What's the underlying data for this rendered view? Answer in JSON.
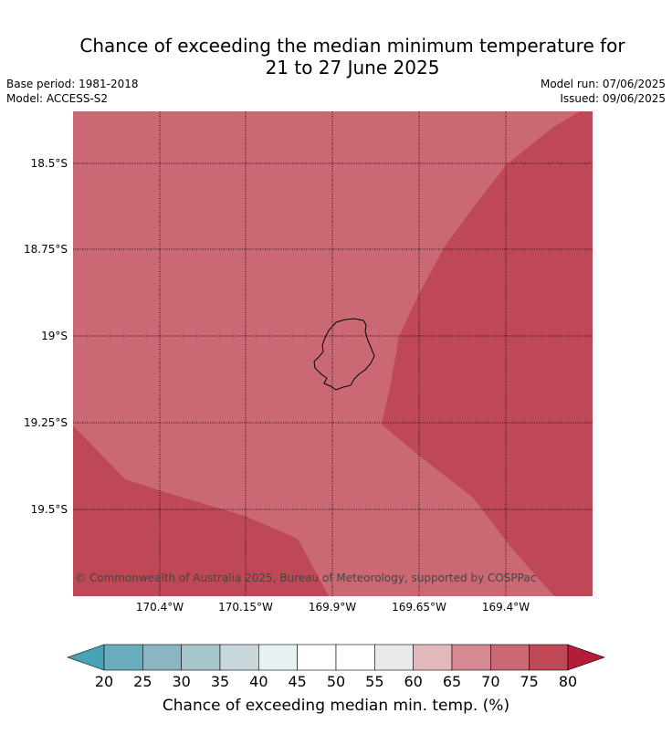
{
  "title_line1": "Chance of exceeding the median minimum temperature for",
  "title_line2": "21 to 27 June 2025",
  "base_period": "Base period: 1981-2018",
  "model": "Model: ACCESS-S2",
  "model_run": "Model run: 07/06/2025",
  "issued": "Issued: 09/06/2025",
  "map": {
    "latitude_labels": [
      "18.5°S",
      "18.75°S",
      "19°S",
      "19.25°S",
      "19.5°S"
    ],
    "longitude_labels": [
      "170.4°W",
      "170.15°W",
      "169.9°W",
      "169.65°W",
      "169.4°W"
    ],
    "copyright": "© Commonwealth of Australia 2025, Bureau of Meteorology, supported by COSPPac",
    "region_colors": {
      "70-75": "#ca6974",
      "75-80": "#bf4857"
    }
  },
  "colorbar": {
    "label": "Chance of exceeding median min. temp. (%)",
    "ticks": [
      "20",
      "25",
      "30",
      "35",
      "40",
      "45",
      "50",
      "55",
      "60",
      "65",
      "70",
      "75",
      "80"
    ],
    "under_color": "#4aa3b4",
    "over_color": "#b31d3a",
    "bins": [
      "#6aaebd",
      "#8bb5c2",
      "#a7c6ca",
      "#c8d8db",
      "#e8f0f2",
      "#ffffff",
      "#ffffff",
      "#e9e9e9",
      "#e2b8bb",
      "#d58a93",
      "#ca6974",
      "#bf4857"
    ]
  }
}
